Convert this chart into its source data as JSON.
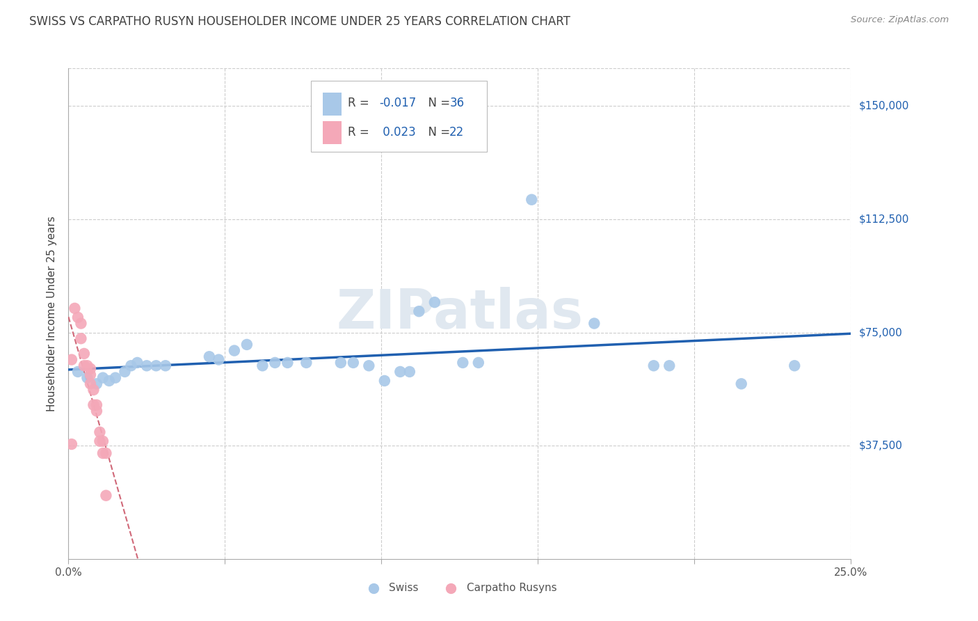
{
  "title": "SWISS VS CARPATHO RUSYN HOUSEHOLDER INCOME UNDER 25 YEARS CORRELATION CHART",
  "source": "Source: ZipAtlas.com",
  "ylabel": "Householder Income Under 25 years",
  "xlim": [
    0.0,
    0.25
  ],
  "ylim": [
    0,
    162500
  ],
  "yticks": [
    37500,
    75000,
    112500,
    150000
  ],
  "ytick_labels": [
    "$37,500",
    "$75,000",
    "$112,500",
    "$150,000"
  ],
  "xticks": [
    0.0,
    0.05,
    0.1,
    0.15,
    0.2,
    0.25
  ],
  "xtick_labels": [
    "0.0%",
    "",
    "",
    "",
    "",
    "25.0%"
  ],
  "swiss_points": [
    [
      0.003,
      62000
    ],
    [
      0.006,
      60000
    ],
    [
      0.009,
      58000
    ],
    [
      0.011,
      60000
    ],
    [
      0.013,
      59000
    ],
    [
      0.015,
      60000
    ],
    [
      0.018,
      62000
    ],
    [
      0.02,
      64000
    ],
    [
      0.022,
      65000
    ],
    [
      0.025,
      64000
    ],
    [
      0.028,
      64000
    ],
    [
      0.031,
      64000
    ],
    [
      0.045,
      67000
    ],
    [
      0.048,
      66000
    ],
    [
      0.053,
      69000
    ],
    [
      0.057,
      71000
    ],
    [
      0.062,
      64000
    ],
    [
      0.066,
      65000
    ],
    [
      0.07,
      65000
    ],
    [
      0.076,
      65000
    ],
    [
      0.087,
      65000
    ],
    [
      0.091,
      65000
    ],
    [
      0.096,
      64000
    ],
    [
      0.101,
      59000
    ],
    [
      0.106,
      62000
    ],
    [
      0.109,
      62000
    ],
    [
      0.112,
      82000
    ],
    [
      0.117,
      85000
    ],
    [
      0.126,
      65000
    ],
    [
      0.131,
      65000
    ],
    [
      0.148,
      119000
    ],
    [
      0.168,
      78000
    ],
    [
      0.187,
      64000
    ],
    [
      0.192,
      64000
    ],
    [
      0.215,
      58000
    ],
    [
      0.232,
      64000
    ]
  ],
  "carpatho_points": [
    [
      0.001,
      66000
    ],
    [
      0.002,
      83000
    ],
    [
      0.003,
      80000
    ],
    [
      0.004,
      78000
    ],
    [
      0.004,
      73000
    ],
    [
      0.005,
      68000
    ],
    [
      0.005,
      64000
    ],
    [
      0.006,
      64000
    ],
    [
      0.007,
      63000
    ],
    [
      0.007,
      61000
    ],
    [
      0.007,
      58000
    ],
    [
      0.008,
      56000
    ],
    [
      0.008,
      51000
    ],
    [
      0.009,
      51000
    ],
    [
      0.009,
      49000
    ],
    [
      0.01,
      42000
    ],
    [
      0.01,
      39000
    ],
    [
      0.011,
      39000
    ],
    [
      0.011,
      35000
    ],
    [
      0.012,
      35000
    ],
    [
      0.012,
      21000
    ],
    [
      0.001,
      38000
    ]
  ],
  "swiss_r": -0.017,
  "carpatho_r": 0.023,
  "swiss_n": 36,
  "carpatho_n": 22,
  "swiss_color": "#a8c8e8",
  "carpatho_color": "#f4a8b8",
  "swiss_line_color": "#2060b0",
  "carpatho_line_color": "#d06878",
  "bg_color": "#ffffff",
  "grid_color": "#cccccc",
  "watermark": "ZIPatlas",
  "title_color": "#404040"
}
